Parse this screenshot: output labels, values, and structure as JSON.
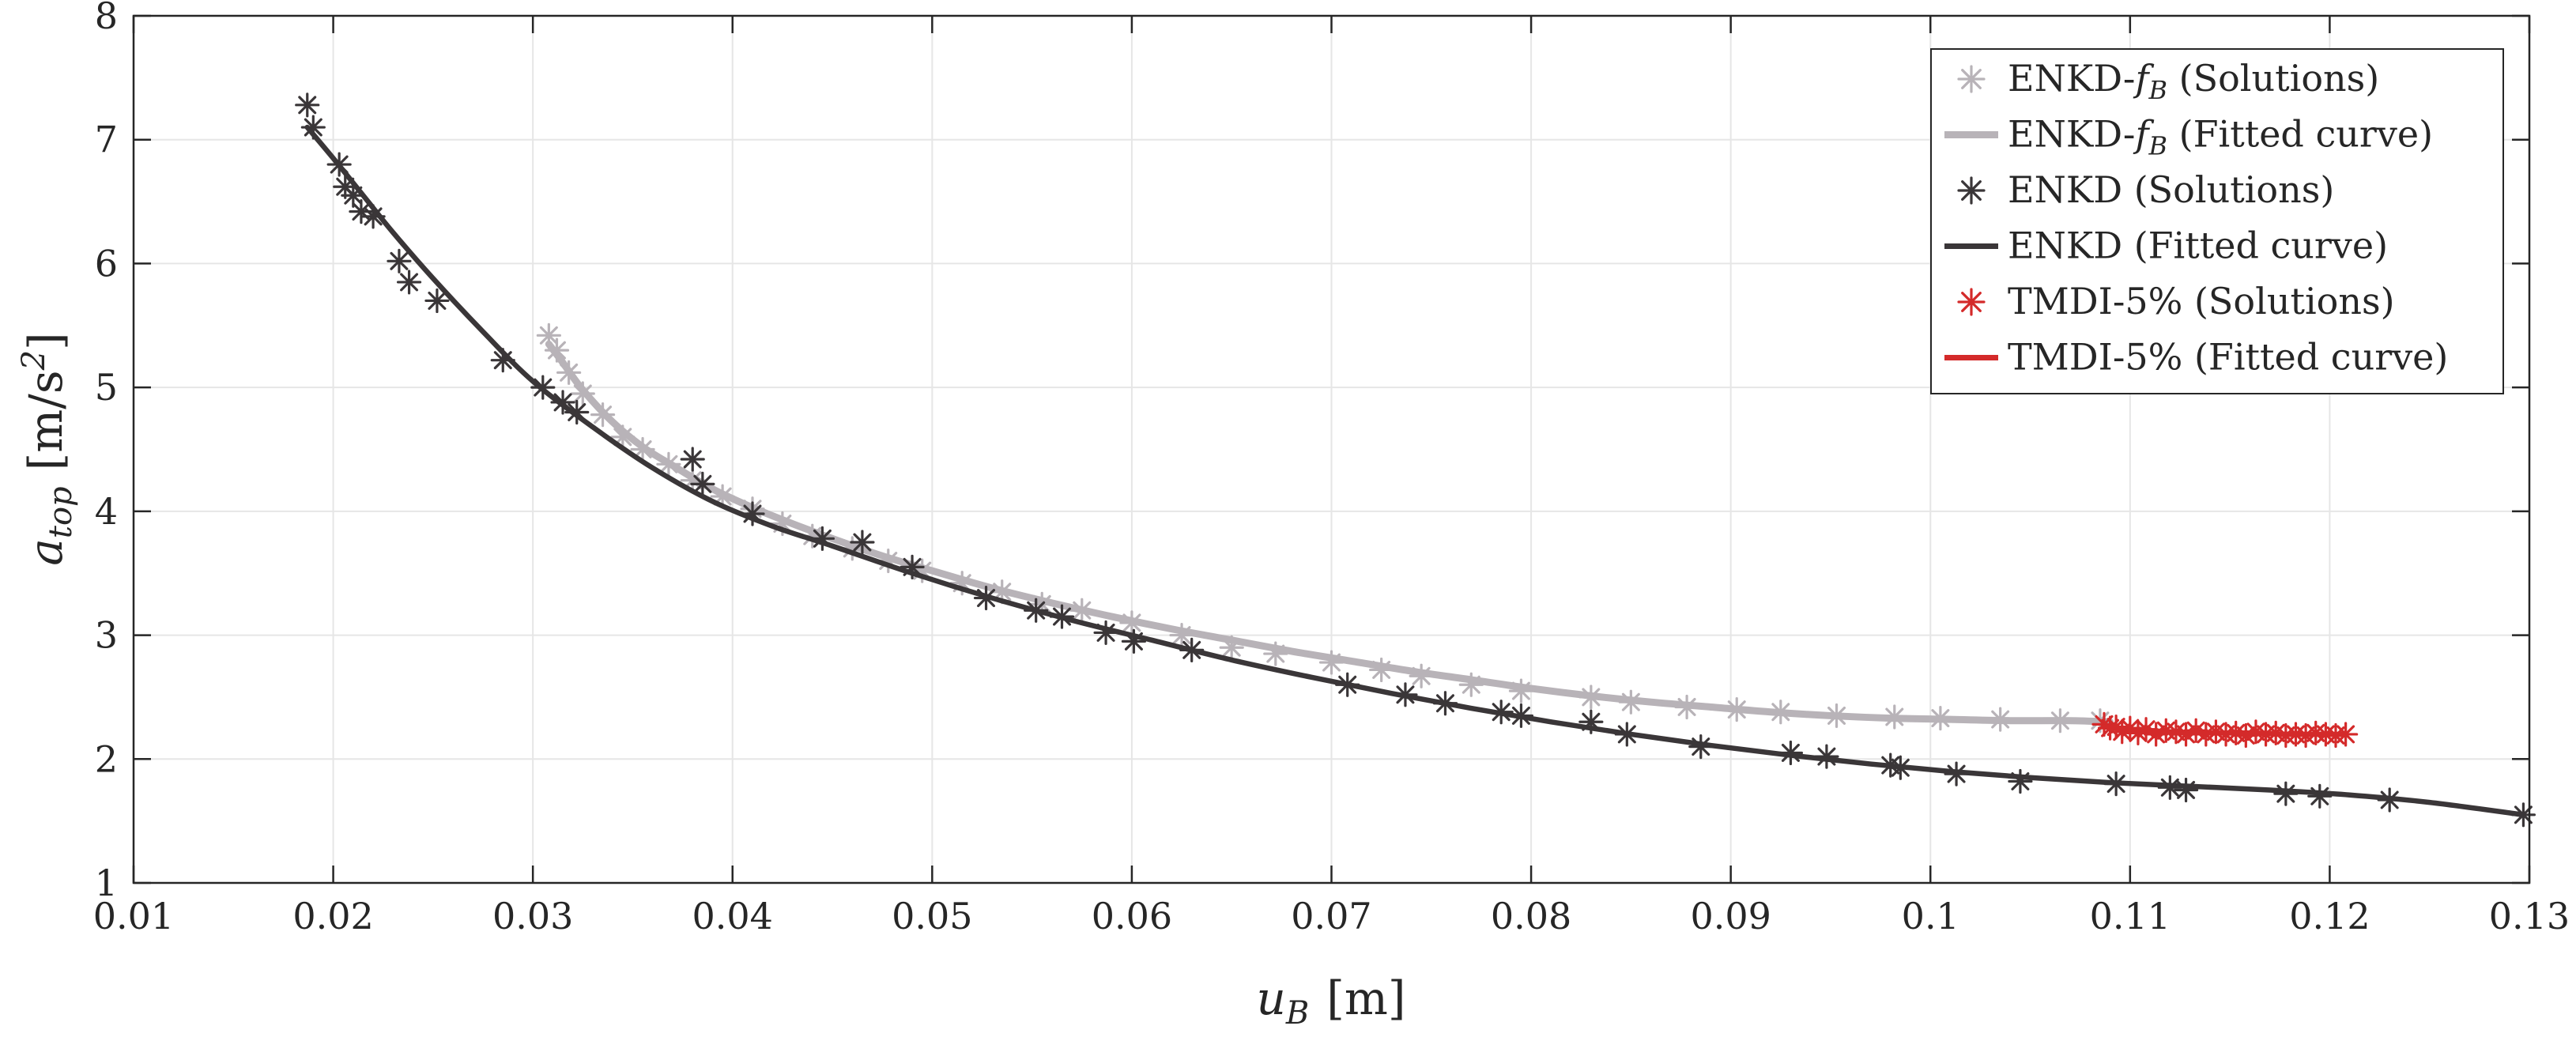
{
  "chart_data": {
    "type": "scatter",
    "xlabel": "u_B [m]",
    "ylabel": "a_top [m/s^2]",
    "xlim": [
      0.01,
      0.13
    ],
    "ylim": [
      1,
      8
    ],
    "xticks": [
      "0.01",
      "0.02",
      "0.03",
      "0.04",
      "0.05",
      "0.06",
      "0.07",
      "0.08",
      "0.09",
      "0.1",
      "0.11",
      "0.12",
      "0.13"
    ],
    "yticks": [
      "1",
      "2",
      "3",
      "4",
      "5",
      "6",
      "7",
      "8"
    ],
    "grid": true,
    "legend_position": "top-right",
    "colors": {
      "enkd_fb": "#b8b3b8",
      "enkd": "#3a3638",
      "tmdi": "#d42a2a"
    },
    "series": [
      {
        "name": "ENKD-f_B (Solutions)",
        "kind": "markers",
        "color_key": "enkd_fb",
        "x": [
          0.0308,
          0.0312,
          0.0318,
          0.0325,
          0.0335,
          0.0345,
          0.0355,
          0.0368,
          0.038,
          0.0395,
          0.041,
          0.0425,
          0.044,
          0.046,
          0.0478,
          0.0495,
          0.0515,
          0.0535,
          0.0555,
          0.0575,
          0.06,
          0.0625,
          0.065,
          0.0672,
          0.07,
          0.0725,
          0.0745,
          0.077,
          0.0795,
          0.083,
          0.085,
          0.0878,
          0.0903,
          0.0925,
          0.0953,
          0.0982,
          0.1005,
          0.1035,
          0.1065,
          0.1085
        ],
        "y": [
          5.42,
          5.3,
          5.12,
          4.95,
          4.78,
          4.6,
          4.5,
          4.38,
          4.25,
          4.12,
          4.02,
          3.9,
          3.8,
          3.7,
          3.6,
          3.52,
          3.42,
          3.35,
          3.25,
          3.2,
          3.1,
          3.0,
          2.9,
          2.85,
          2.78,
          2.72,
          2.67,
          2.6,
          2.55,
          2.5,
          2.46,
          2.42,
          2.4,
          2.38,
          2.35,
          2.34,
          2.33,
          2.32,
          2.31,
          2.31
        ]
      },
      {
        "name": "ENKD-f_B (Fitted curve)",
        "kind": "line",
        "color_key": "enkd_fb",
        "x": [
          0.0308,
          0.0315,
          0.0325,
          0.034,
          0.0355,
          0.037,
          0.039,
          0.041,
          0.043,
          0.045,
          0.0475,
          0.05,
          0.053,
          0.056,
          0.059,
          0.062,
          0.065,
          0.068,
          0.071,
          0.074,
          0.077,
          0.08,
          0.083,
          0.086,
          0.089,
          0.092,
          0.095,
          0.098,
          0.101,
          0.104,
          0.107,
          0.109
        ],
        "y": [
          5.35,
          5.2,
          4.98,
          4.72,
          4.52,
          4.37,
          4.18,
          4.03,
          3.9,
          3.78,
          3.64,
          3.52,
          3.38,
          3.26,
          3.15,
          3.05,
          2.96,
          2.87,
          2.79,
          2.71,
          2.64,
          2.57,
          2.51,
          2.46,
          2.42,
          2.38,
          2.35,
          2.33,
          2.32,
          2.31,
          2.31,
          2.3
        ]
      },
      {
        "name": "ENKD (Solutions)",
        "kind": "markers",
        "color_key": "enkd",
        "x": [
          0.0187,
          0.019,
          0.0203,
          0.0206,
          0.021,
          0.0214,
          0.022,
          0.0233,
          0.0238,
          0.0252,
          0.0285,
          0.0305,
          0.0315,
          0.0322,
          0.038,
          0.0385,
          0.041,
          0.0445,
          0.0465,
          0.049,
          0.0527,
          0.0552,
          0.0565,
          0.0587,
          0.0601,
          0.063,
          0.0708,
          0.0737,
          0.0757,
          0.0785,
          0.0795,
          0.083,
          0.0848,
          0.0885,
          0.093,
          0.0948,
          0.098,
          0.0985,
          0.1013,
          0.1045,
          0.1093,
          0.112,
          0.1128,
          0.1178,
          0.1195,
          0.123,
          0.1297
        ],
        "y": [
          7.28,
          7.1,
          6.8,
          6.62,
          6.55,
          6.42,
          6.38,
          6.02,
          5.85,
          5.7,
          5.22,
          5.0,
          4.88,
          4.8,
          4.42,
          4.22,
          3.98,
          3.78,
          3.75,
          3.55,
          3.3,
          3.2,
          3.15,
          3.02,
          2.95,
          2.88,
          2.6,
          2.52,
          2.45,
          2.38,
          2.35,
          2.3,
          2.2,
          2.1,
          2.05,
          2.02,
          1.95,
          1.93,
          1.88,
          1.82,
          1.8,
          1.77,
          1.75,
          1.72,
          1.7,
          1.67,
          1.55
        ]
      },
      {
        "name": "ENKD (Fitted curve)",
        "kind": "line",
        "color_key": "enkd",
        "x": [
          0.0187,
          0.02,
          0.0215,
          0.023,
          0.025,
          0.0275,
          0.03,
          0.033,
          0.036,
          0.039,
          0.042,
          0.045,
          0.049,
          0.053,
          0.057,
          0.061,
          0.065,
          0.069,
          0.073,
          0.077,
          0.081,
          0.085,
          0.089,
          0.093,
          0.097,
          0.101,
          0.105,
          0.109,
          0.113,
          0.117,
          0.121,
          0.125,
          0.1297
        ],
        "y": [
          7.1,
          6.85,
          6.55,
          6.25,
          5.88,
          5.45,
          5.05,
          4.68,
          4.35,
          4.08,
          3.88,
          3.72,
          3.5,
          3.3,
          3.12,
          2.96,
          2.8,
          2.66,
          2.53,
          2.41,
          2.3,
          2.2,
          2.11,
          2.03,
          1.96,
          1.9,
          1.85,
          1.81,
          1.78,
          1.75,
          1.71,
          1.65,
          1.55
        ]
      },
      {
        "name": "TMDI-5% (Solutions)",
        "kind": "markers",
        "color_key": "tmdi",
        "x": [
          0.1087,
          0.109,
          0.1093,
          0.1096,
          0.11,
          0.1104,
          0.1108,
          0.1113,
          0.1118,
          0.1123,
          0.1128,
          0.1133,
          0.1138,
          0.1143,
          0.1148,
          0.1153,
          0.1158,
          0.1163,
          0.1168,
          0.1173,
          0.1178,
          0.1183,
          0.1188,
          0.1193,
          0.1198,
          0.1203,
          0.1208
        ],
        "y": [
          2.28,
          2.25,
          2.26,
          2.22,
          2.25,
          2.21,
          2.24,
          2.2,
          2.23,
          2.22,
          2.2,
          2.23,
          2.2,
          2.22,
          2.2,
          2.21,
          2.19,
          2.22,
          2.2,
          2.21,
          2.19,
          2.2,
          2.19,
          2.21,
          2.2,
          2.19,
          2.2
        ]
      },
      {
        "name": "TMDI-5% (Fitted curve)",
        "kind": "line",
        "color_key": "tmdi",
        "x": [
          0.1087,
          0.11,
          0.112,
          0.114,
          0.116,
          0.118,
          0.12,
          0.1208
        ],
        "y": [
          2.26,
          2.24,
          2.22,
          2.21,
          2.21,
          2.2,
          2.2,
          2.2
        ]
      }
    ]
  },
  "legend": {
    "items": [
      {
        "prefix": "ENKD-",
        "math": "f",
        "sub": "B",
        "suffix": " (Solutions)"
      },
      {
        "prefix": "ENKD-",
        "math": "f",
        "sub": "B",
        "suffix": " (Fitted curve)"
      },
      {
        "prefix": "ENKD (Solutions)",
        "math": "",
        "sub": "",
        "suffix": ""
      },
      {
        "prefix": "ENKD (Fitted curve)",
        "math": "",
        "sub": "",
        "suffix": ""
      },
      {
        "prefix": "TMDI-5% (Solutions)",
        "math": "",
        "sub": "",
        "suffix": ""
      },
      {
        "prefix": "TMDI-5% (Fitted curve)",
        "math": "",
        "sub": "",
        "suffix": ""
      }
    ]
  },
  "axis_text": {
    "x_main": "u",
    "x_sub": "B",
    "x_unit": "[m]",
    "y_main": "a",
    "y_sub": "top",
    "y_unit_open": "[m/s",
    "y_unit_sup": "2",
    "y_unit_close": "]"
  }
}
